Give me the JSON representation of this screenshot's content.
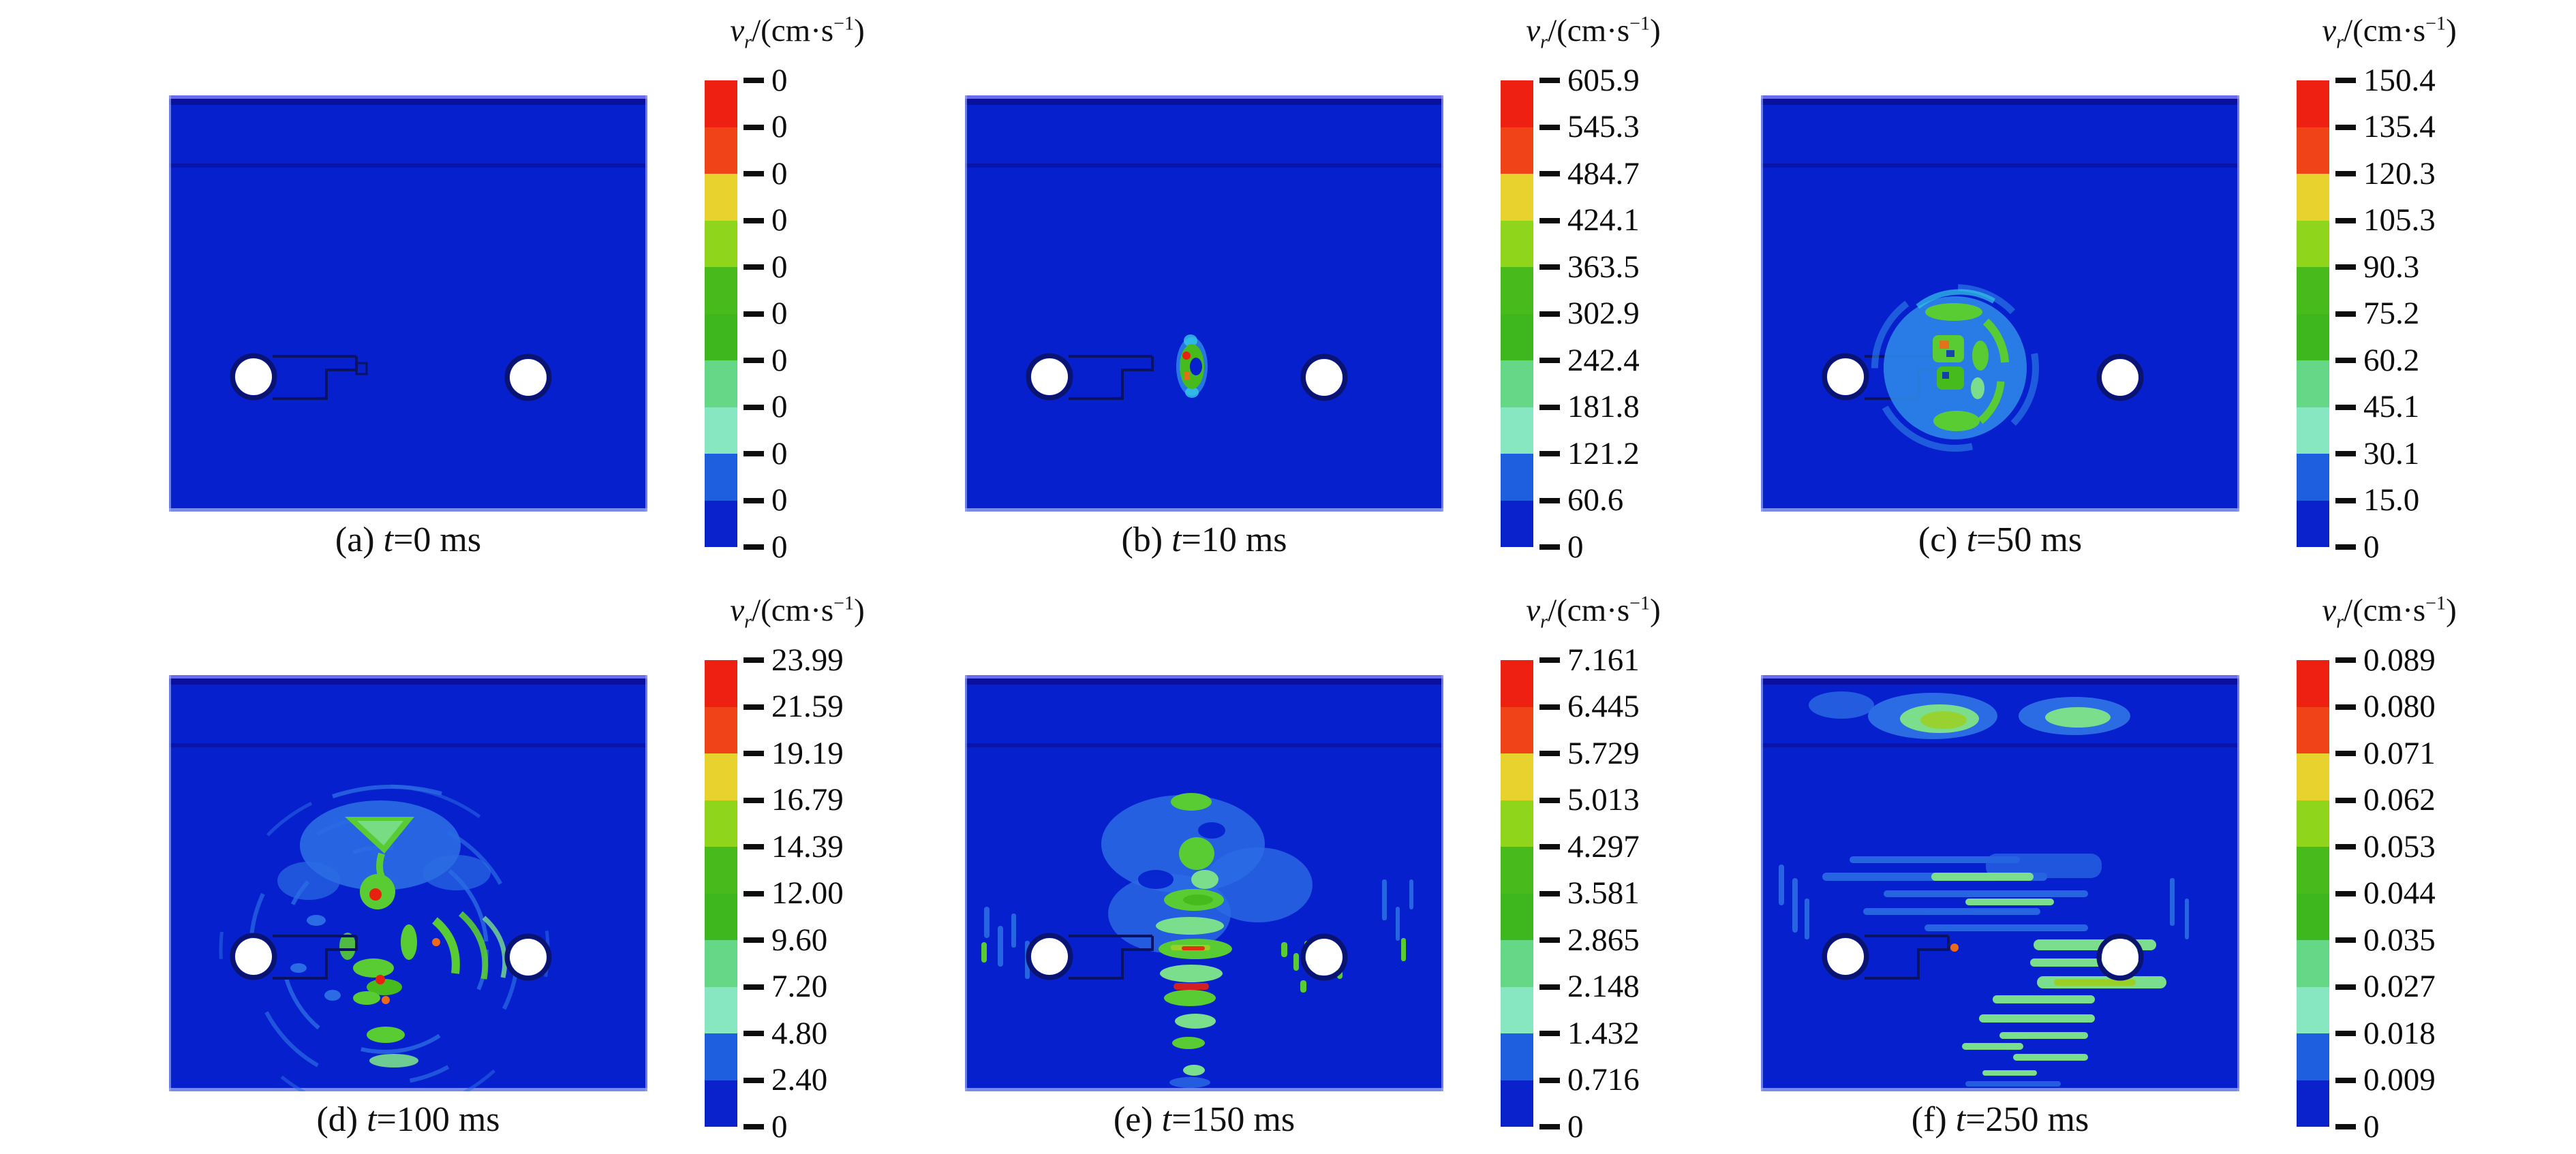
{
  "figure": {
    "unit": {
      "v": "v",
      "sub": "r",
      "mid": "/(cm·s",
      "sup": "−1",
      "close": ")"
    },
    "colorbar": {
      "colors": [
        "#ee2012",
        "#f04418",
        "#e8d22e",
        "#8fd51b",
        "#49ba1b",
        "#3eb71e",
        "#66d787",
        "#87e7c0",
        "#1e5fe0",
        "#0a22cc"
      ]
    },
    "panel_colors": {
      "background": "#0620cd",
      "layer_line": "#0a13a6",
      "top_highlight": "#6b6bf0",
      "top_band": "#0a0f9e",
      "edge": "#97a6ee",
      "hole_fill": "#ffffff",
      "hole_ring": "#0a1470",
      "tunnel_line": "#0a1264",
      "wave_blue": "#2b6ce4",
      "wave_lightblue": "#2e86e8",
      "wave_cyan": "#35c8e8",
      "wave_green": "#46bb1e",
      "wave_midgreen": "#59cc33",
      "wave_lightgreen": "#7ade8c",
      "wave_yellowgreen": "#9ad026",
      "wave_red": "#e82010",
      "wave_orange": "#ef6a18"
    },
    "panels": [
      {
        "id": "a",
        "caption": {
          "prefix": "(a) ",
          "var": "t",
          "suffix": "=0 ms"
        },
        "ticks": [
          "0",
          "0",
          "0",
          "0",
          "0",
          "0",
          "0",
          "0",
          "0",
          "0",
          "0"
        ]
      },
      {
        "id": "b",
        "caption": {
          "prefix": "(b) ",
          "var": "t",
          "suffix": "=10 ms"
        },
        "ticks": [
          "605.9",
          "545.3",
          "484.7",
          "424.1",
          "363.5",
          "302.9",
          "242.4",
          "181.8",
          "121.2",
          "60.6",
          "0"
        ]
      },
      {
        "id": "c",
        "caption": {
          "prefix": "(c) ",
          "var": "t",
          "suffix": "=50 ms"
        },
        "ticks": [
          "150.4",
          "135.4",
          "120.3",
          "105.3",
          "90.3",
          "75.2",
          "60.2",
          "45.1",
          "30.1",
          "15.0",
          "0"
        ]
      },
      {
        "id": "d",
        "caption": {
          "prefix": "(d) ",
          "var": "t",
          "suffix": "=100 ms"
        },
        "ticks": [
          "23.99",
          "21.59",
          "19.19",
          "16.79",
          "14.39",
          "12.00",
          "9.60",
          "7.20",
          "4.80",
          "2.40",
          "0"
        ]
      },
      {
        "id": "e",
        "caption": {
          "prefix": "(e) ",
          "var": "t",
          "suffix": "=150 ms"
        },
        "ticks": [
          "7.161",
          "6.445",
          "5.729",
          "5.013",
          "4.297",
          "3.581",
          "2.865",
          "2.148",
          "1.432",
          "0.716",
          "0"
        ]
      },
      {
        "id": "f",
        "caption": {
          "prefix": "(f) ",
          "var": "t",
          "suffix": "=250 ms"
        },
        "ticks": [
          "0.089",
          "0.080",
          "0.071",
          "0.062",
          "0.053",
          "0.044",
          "0.035",
          "0.027",
          "0.018",
          "0.009",
          "0"
        ]
      }
    ]
  },
  "chart_data": [
    {
      "type": "heatmap",
      "title": "(a) t=0 ms",
      "legend_label": "vr/(cm·s−1)",
      "colorbar_ticks_top_to_bottom": [
        0,
        0,
        0,
        0,
        0,
        0,
        0,
        0,
        0,
        0,
        0
      ],
      "range": [
        0,
        0
      ]
    },
    {
      "type": "heatmap",
      "title": "(b) t=10 ms",
      "legend_label": "vr/(cm·s−1)",
      "colorbar_ticks_top_to_bottom": [
        605.9,
        545.3,
        484.7,
        424.1,
        363.5,
        302.9,
        242.4,
        181.8,
        121.2,
        60.6,
        0
      ],
      "range": [
        0,
        605.9
      ]
    },
    {
      "type": "heatmap",
      "title": "(c) t=50 ms",
      "legend_label": "vr/(cm·s−1)",
      "colorbar_ticks_top_to_bottom": [
        150.4,
        135.4,
        120.3,
        105.3,
        90.3,
        75.2,
        60.2,
        45.1,
        30.1,
        15.0,
        0
      ],
      "range": [
        0,
        150.4
      ]
    },
    {
      "type": "heatmap",
      "title": "(d) t=100 ms",
      "legend_label": "vr/(cm·s−1)",
      "colorbar_ticks_top_to_bottom": [
        23.99,
        21.59,
        19.19,
        16.79,
        14.39,
        12.0,
        9.6,
        7.2,
        4.8,
        2.4,
        0
      ],
      "range": [
        0,
        23.99
      ]
    },
    {
      "type": "heatmap",
      "title": "(e) t=150 ms",
      "legend_label": "vr/(cm·s−1)",
      "colorbar_ticks_top_to_bottom": [
        7.161,
        6.445,
        5.729,
        5.013,
        4.297,
        3.581,
        2.865,
        2.148,
        1.432,
        0.716,
        0
      ],
      "range": [
        0,
        7.161
      ]
    },
    {
      "type": "heatmap",
      "title": "(f) t=250 ms",
      "legend_label": "vr/(cm·s−1)",
      "colorbar_ticks_top_to_bottom": [
        0.089,
        0.08,
        0.071,
        0.062,
        0.053,
        0.044,
        0.035,
        0.027,
        0.018,
        0.009,
        0
      ],
      "range": [
        0,
        0.089
      ]
    }
  ]
}
